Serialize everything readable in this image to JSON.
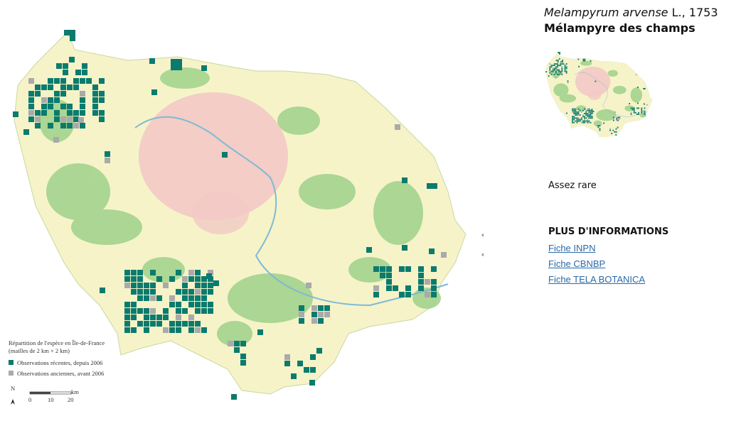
{
  "header": {
    "latin_name": "Melampyrum arvense",
    "authority": " L., 1753",
    "common_name": "Mélampyre des champs"
  },
  "rarity": "Assez rare",
  "more_info": {
    "title": "PLUS D'INFORMATIONS",
    "links": [
      "Fiche INPN",
      "Fiche CBNBP",
      "Fiche TELA BOTANICA"
    ]
  },
  "map_legend": {
    "title": "Répartition de l'espèce en Île-de-France",
    "subtitle": "(mailles de 2 km × 2 km)",
    "items": [
      "Observations récentes, depuis 2006",
      "Observations anciennes, avant 2006"
    ],
    "north": "N",
    "scale_labels": [
      "0",
      "10",
      "20"
    ],
    "scale_unit": "km"
  }
}
